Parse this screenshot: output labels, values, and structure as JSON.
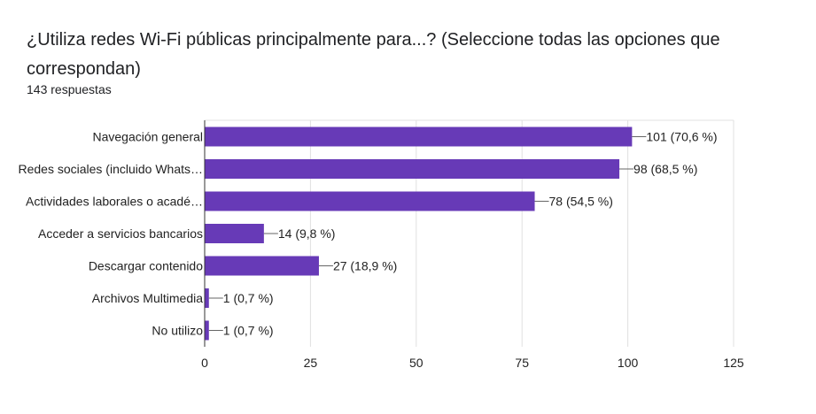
{
  "title": "¿Utiliza redes Wi-Fi públicas principalmente para...? (Seleccione todas las opciones que correspondan)",
  "subtitle": "143 respuestas",
  "colors": {
    "bar": "#673ab7",
    "grid": "#e0e0e0",
    "axis": "#333333"
  },
  "chart_data": {
    "type": "bar",
    "orientation": "horizontal",
    "categories": [
      "Navegación general",
      "Redes sociales (incluido Whats…",
      "Actividades laborales o acadé…",
      "Acceder a servicios bancarios",
      "Descargar contenido",
      "Archivos Multimedia",
      "No utilizo"
    ],
    "values": [
      101,
      98,
      78,
      14,
      27,
      1,
      1
    ],
    "data_labels": [
      "101 (70,6 %)",
      "98 (68,5 %)",
      "78 (54,5 %)",
      "14 (9,8 %)",
      "27 (18,9 %)",
      "1 (0,7 %)",
      "1 (0,7 %)"
    ],
    "xlim": [
      0,
      125
    ],
    "xticks": [
      0,
      25,
      50,
      75,
      100,
      125
    ],
    "grid": true
  }
}
